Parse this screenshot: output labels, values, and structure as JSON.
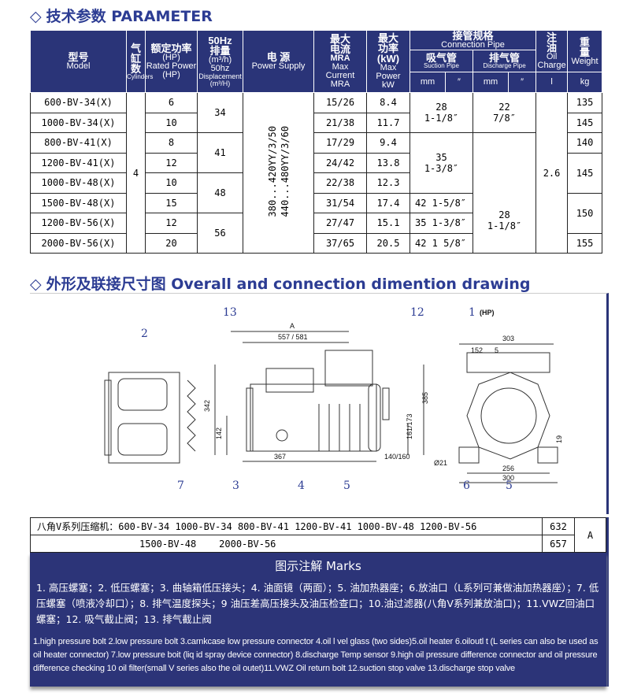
{
  "section1": {
    "diamond": "◇",
    "title": "技术参数 PARAMETER"
  },
  "header": {
    "model_cn": "型号",
    "model_en": "Model",
    "cyl_cn": "气缸数",
    "cyl_en": "Cylinders",
    "hp_cn": "额定功率",
    "hp_unit": "(HP)",
    "hp_en": "Rated Power",
    "hp_en_unit": "(HP)",
    "disp_hz": "50Hz",
    "disp_cn": "排量",
    "disp_unit": "(m³/h)",
    "disp_en_hz": "50hz",
    "disp_en": "Displacement",
    "disp_en_unit": "(m³/H)",
    "power_cn": "电 源",
    "power_en": "Power Supply",
    "cur_cn": "最大电流",
    "cur_unit": "MRA",
    "cur_en": "Max Current",
    "cur_en_unit": "MRA",
    "kw_cn": "最大功率",
    "kw_unit": "(kW)",
    "kw_en": "Max Power",
    "kw_en_unit": "kW",
    "conn_cn": "接管规格",
    "conn_en": "Connection Pipe",
    "suc_cn": "吸气管",
    "suc_en": "Suction Pipe",
    "dis_cn": "排气管",
    "dis_en": "Discharge Pipe",
    "mm": "mm",
    "inch": "″",
    "oil_cn": "注油",
    "oil_en": "Oil Charge",
    "oil_unit": "l",
    "wt_cn": "重量",
    "wt_en": "Weight",
    "wt_unit": "kg"
  },
  "rows": [
    {
      "model": "600-BV-34(X)",
      "hp": "6",
      "cur": "15/26",
      "kw": "8.4"
    },
    {
      "model": "1000-BV-34(X)",
      "hp": "10",
      "cur": "21/38",
      "kw": "11.7"
    },
    {
      "model": "800-BV-41(X)",
      "hp": "8",
      "cur": "17/29",
      "kw": "9.4"
    },
    {
      "model": "1200-BV-41(X)",
      "hp": "12",
      "cur": "24/42",
      "kw": "13.8"
    },
    {
      "model": "1000-BV-48(X)",
      "hp": "10",
      "cur": "22/38",
      "kw": "12.3"
    },
    {
      "model": "1500-BV-48(X)",
      "hp": "15",
      "cur": "31/54",
      "kw": "17.4"
    },
    {
      "model": "1200-BV-56(X)",
      "hp": "12",
      "cur": "27/47",
      "kw": "15.1"
    },
    {
      "model": "2000-BV-56(X)",
      "hp": "20",
      "cur": "37/65",
      "kw": "20.5"
    }
  ],
  "merged": {
    "cylinders": "4",
    "power1": "380...420YY/3/50",
    "power2": "440...480YY/3/60",
    "oil": "2.6",
    "disp": [
      "34",
      "41",
      "48",
      "56"
    ],
    "suction": [
      {
        "mm": "28",
        "in": "1-1/8″"
      },
      {
        "mm": "35",
        "in": "1-3/8″"
      },
      {
        "mm": "42",
        "in": "1-5/8″"
      },
      {
        "mm": "35",
        "in": "1-3/8″"
      },
      {
        "mm": "42",
        "in": "1 5/8″"
      }
    ],
    "discharge": [
      {
        "mm": "22",
        "in": "7/8″"
      },
      {
        "mm": "28",
        "in": "1-1/8″"
      }
    ],
    "weight": [
      "135",
      "145",
      "140",
      "145",
      "150",
      "155"
    ]
  },
  "section2": {
    "diamond": "◇",
    "title": "外形及联接尺寸图 Overall and connection dimention drawing"
  },
  "drawing": {
    "labels": [
      "1",
      "2",
      "3",
      "4",
      "5",
      "5",
      "6",
      "7",
      "12",
      "13"
    ],
    "hp": "(HP)",
    "dims": [
      "A",
      "557 / 581",
      "342",
      "142",
      "385",
      "161/173",
      "367",
      "140/160",
      "303",
      "152",
      "5",
      "Ø21",
      "256",
      "300",
      "19"
    ]
  },
  "series": {
    "line1": "八角V系列压缩机：600-BV-34 1000-BV-34 800-BV-41 1200-BV-41 1000-BV-48 1200-BV-56",
    "val1": "632",
    "line2": "1500-BV-48    2000-BV-56",
    "val2": "657",
    "col": "A"
  },
  "marks": {
    "title": "图示注解  Marks",
    "cn": "1. 高压螺塞；2. 低压螺塞；3. 曲轴箱低压接头；4. 油面镜（两面）；5. 油加热器座；6.放油口（L系列可兼做油加热器座）；7. 低压螺塞（喷液冷却口）；8. 排气温度探头；9 油压差高压接头及油压检查口；10.油过滤器(八角V系列兼放油口)；11.VWZ回油口螺塞；12. 吸气截止阀；13. 排气截止阀",
    "en": "1.high pressure bolt 2.low pressure bolt 3.carnkcase low pressure connector 4.oil l vel glass (two sides)5.oil heater 6.oiloutl t (L series can also be used as oil heater connector) 7.low pressure boit (liq id spray device connector) 8.discharge Temp sensor 9.high oil pressure difference connector and oil pressure difference checking 10 oil filter(small V series also the oil outet)11.VWZ Oil return bolt 12.suction stop valve 13.discharge stop valve"
  },
  "colors": {
    "header": "#2a3478",
    "title": "#2c3c93"
  }
}
